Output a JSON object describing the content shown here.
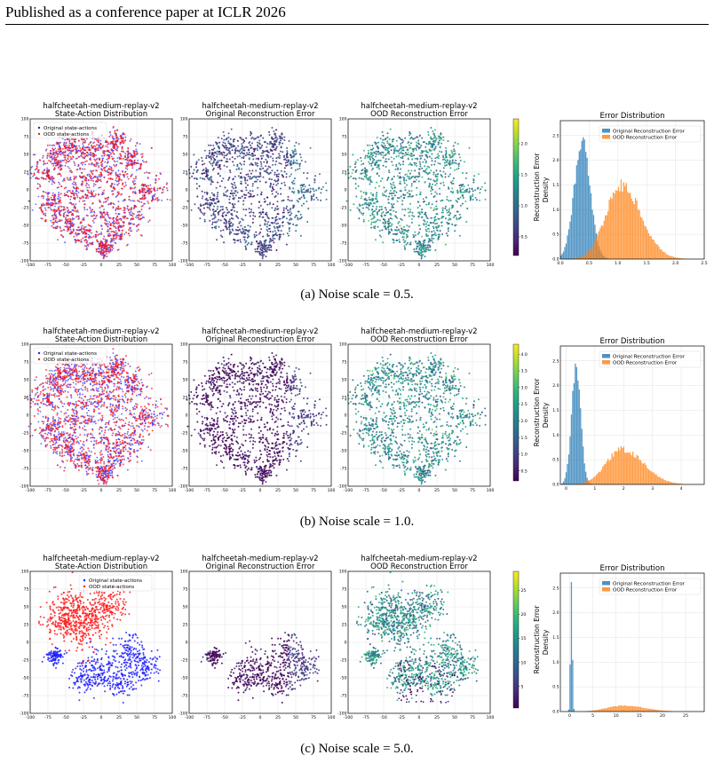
{
  "header": {
    "text": "Published as a conference paper at ICLR 2026"
  },
  "common": {
    "dataset": "halfcheetah-medium-replay-v2",
    "titles": {
      "state_action": "State-Action Distribution",
      "orig_error": "Original Reconstruction Error",
      "ood_error": "OOD Reconstruction Error",
      "error_dist": "Error Distribution"
    },
    "legend_scatter": [
      "Original state-actions",
      "OOD state-actions"
    ],
    "legend_hist": [
      "Original Reconstruction Error",
      "OOD Reconstruction Error"
    ],
    "colorbar_label": "Reconstruction Error",
    "hist_xlabel": "Reconstruction Error",
    "hist_ylabel": "Density",
    "tsne_ticks": [
      "-100",
      "-75",
      "-50",
      "-25",
      "0",
      "25",
      "50",
      "75",
      "100"
    ],
    "colors": {
      "original_scatter": "#1f1fff",
      "ood_scatter": "#ff1a1a",
      "orig_hist": "#1f77b4",
      "ood_hist": "#ff7f0e"
    }
  },
  "rows": [
    {
      "caption": "(a) Noise scale = 0.5.",
      "chart_data": {
        "type": "histogram",
        "title": "Error Distribution",
        "xlabel": "Reconstruction Error",
        "ylabel": "Density",
        "xlim": [
          0,
          2.5
        ],
        "ylim": [
          0,
          2.8
        ],
        "x_ticks": [
          "0.0",
          "0.5",
          "1.0",
          "1.5",
          "2.0",
          "2.5"
        ],
        "y_ticks": [
          "0.0",
          "0.5",
          "1.0",
          "1.5",
          "2.0",
          "2.5"
        ],
        "series": [
          {
            "name": "Original Reconstruction Error",
            "mean": 0.38,
            "std": 0.14,
            "peak": 2.35
          },
          {
            "name": "OOD Reconstruction Error",
            "mean": 1.05,
            "std": 0.26,
            "peak": 1.52
          }
        ],
        "colorbar_ticks": [
          "0.5",
          "1.0",
          "1.5",
          "2.0"
        ],
        "colorbar_range": [
          0.2,
          2.4
        ],
        "ood_overlay": "mixed"
      }
    },
    {
      "caption": "(b) Noise scale = 1.0.",
      "chart_data": {
        "type": "histogram",
        "title": "Error Distribution",
        "xlabel": "Reconstruction Error",
        "ylabel": "Density",
        "xlim": [
          -0.2,
          4.8
        ],
        "ylim": [
          0,
          2.8
        ],
        "x_ticks": [
          "0",
          "1",
          "2",
          "3",
          "4"
        ],
        "y_ticks": [
          "0.0",
          "0.5",
          "1.0",
          "1.5",
          "2.0",
          "2.5"
        ],
        "series": [
          {
            "name": "Original Reconstruction Error",
            "mean": 0.35,
            "std": 0.16,
            "peak": 2.35
          },
          {
            "name": "OOD Reconstruction Error",
            "mean": 1.95,
            "std": 0.55,
            "peak": 0.72
          }
        ],
        "colorbar_ticks": [
          "0.5",
          "1.0",
          "1.5",
          "2.0",
          "2.5",
          "3.0",
          "3.5",
          "4.0"
        ],
        "colorbar_range": [
          0.2,
          4.3
        ],
        "ood_overlay": "mixed"
      }
    },
    {
      "caption": "(c) Noise scale = 5.0.",
      "chart_data": {
        "type": "histogram",
        "title": "Error Distribution",
        "xlabel": "Reconstruction Error",
        "ylabel": "Density",
        "xlim": [
          -2,
          29
        ],
        "ylim": [
          0,
          2.8
        ],
        "x_ticks": [
          "0",
          "5",
          "10",
          "15",
          "20",
          "25"
        ],
        "y_ticks": [
          "0.0",
          "0.5",
          "1.0",
          "1.5",
          "2.0",
          "2.5"
        ],
        "series": [
          {
            "name": "Original Reconstruction Error",
            "mean": 0.4,
            "std": 0.2,
            "peak": 2.6
          },
          {
            "name": "OOD Reconstruction Error",
            "mean": 11.5,
            "std": 3.5,
            "peak": 0.12
          }
        ],
        "colorbar_ticks": [
          "5",
          "10",
          "15",
          "20",
          "25"
        ],
        "colorbar_range": [
          0.5,
          29
        ],
        "ood_overlay": "separated"
      }
    }
  ]
}
